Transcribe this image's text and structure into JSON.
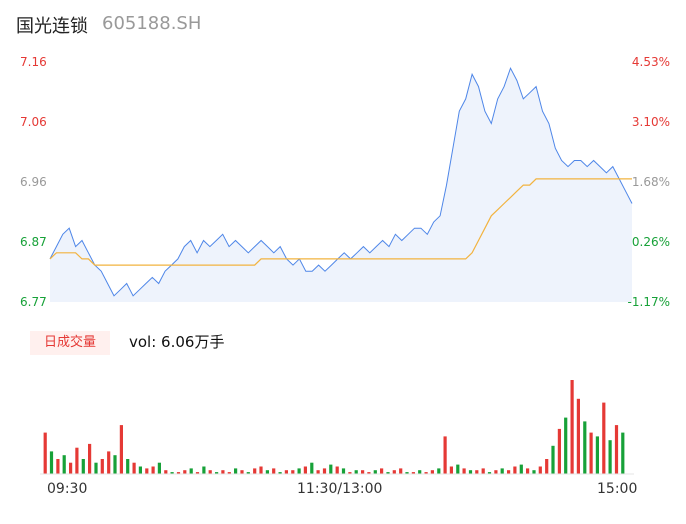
{
  "header": {
    "name": "国光连锁",
    "code": "605188.SH"
  },
  "colors": {
    "up": "#e53935",
    "down": "#17a138",
    "neutral": "#999999",
    "price": "#4e86e8",
    "avg": "#f2b33f"
  },
  "volume": {
    "tab_label": "日成交量",
    "vol_text": "vol: 6.06万手"
  },
  "chart_data": {
    "type": "line",
    "price_axis": {
      "ylim": [
        6.77,
        7.16
      ],
      "ticks": [
        "7.16",
        "7.06",
        "6.96",
        "6.87",
        "6.77"
      ]
    },
    "pct_axis": {
      "ticks": [
        "4.53%",
        "3.10%",
        "1.68%",
        "0.26%",
        "-1.17%"
      ]
    },
    "x_ticks": [
      "09:30",
      "11:30/13:00",
      "15:00"
    ],
    "series": [
      {
        "values": [
          6.84,
          6.86,
          6.88,
          6.89,
          6.86,
          6.87,
          6.85,
          6.83,
          6.82,
          6.8,
          6.78,
          6.79,
          6.8,
          6.78,
          6.79,
          6.8,
          6.81,
          6.8,
          6.82,
          6.83,
          6.84,
          6.86,
          6.87,
          6.85,
          6.87,
          6.86,
          6.87,
          6.88,
          6.86,
          6.87,
          6.86,
          6.85,
          6.86,
          6.87,
          6.86,
          6.85,
          6.86,
          6.84,
          6.83,
          6.84,
          6.82,
          6.82,
          6.83,
          6.82,
          6.83,
          6.84,
          6.85,
          6.84,
          6.85,
          6.86,
          6.85,
          6.86,
          6.87,
          6.86,
          6.88,
          6.87,
          6.88,
          6.89,
          6.89,
          6.88,
          6.9,
          6.91,
          6.96,
          7.02,
          7.08,
          7.1,
          7.14,
          7.12,
          7.08,
          7.06,
          7.1,
          7.12,
          7.15,
          7.13,
          7.1,
          7.11,
          7.12,
          7.08,
          7.06,
          7.02,
          7.0,
          6.99,
          7.0,
          7.0,
          6.99,
          7.0,
          6.99,
          6.98,
          6.99,
          6.97,
          6.95,
          6.93
        ]
      },
      {
        "values": [
          6.84,
          6.85,
          6.85,
          6.85,
          6.85,
          6.84,
          6.84,
          6.83,
          6.83,
          6.83,
          6.83,
          6.83,
          6.83,
          6.83,
          6.83,
          6.83,
          6.83,
          6.83,
          6.83,
          6.83,
          6.83,
          6.83,
          6.83,
          6.83,
          6.83,
          6.83,
          6.83,
          6.83,
          6.83,
          6.83,
          6.83,
          6.83,
          6.83,
          6.84,
          6.84,
          6.84,
          6.84,
          6.84,
          6.84,
          6.84,
          6.84,
          6.84,
          6.84,
          6.84,
          6.84,
          6.84,
          6.84,
          6.84,
          6.84,
          6.84,
          6.84,
          6.84,
          6.84,
          6.84,
          6.84,
          6.84,
          6.84,
          6.84,
          6.84,
          6.84,
          6.84,
          6.84,
          6.84,
          6.84,
          6.84,
          6.84,
          6.85,
          6.87,
          6.89,
          6.91,
          6.92,
          6.93,
          6.94,
          6.95,
          6.96,
          6.96,
          6.97,
          6.97,
          6.97,
          6.97,
          6.97,
          6.97,
          6.97,
          6.97,
          6.97,
          6.97,
          6.97,
          6.97,
          6.97,
          6.97,
          6.97,
          6.97
        ]
      }
    ],
    "volume_values": [
      22,
      12,
      8,
      10,
      6,
      14,
      8,
      16,
      6,
      8,
      12,
      10,
      26,
      8,
      6,
      4,
      3,
      4,
      6,
      2,
      1,
      1,
      2,
      3,
      1,
      4,
      2,
      1,
      2,
      1,
      3,
      2,
      1,
      3,
      4,
      2,
      3,
      1,
      2,
      2,
      3,
      4,
      6,
      2,
      3,
      5,
      4,
      3,
      1,
      2,
      2,
      1,
      2,
      3,
      1,
      2,
      3,
      1,
      1,
      2,
      1,
      2,
      3,
      20,
      4,
      5,
      3,
      2,
      2,
      3,
      1,
      2,
      3,
      2,
      4,
      5,
      3,
      2,
      4,
      8,
      15,
      24,
      30,
      50,
      40,
      28,
      22,
      20,
      38,
      18,
      26,
      22
    ],
    "volume_up": [
      true,
      false,
      true,
      false,
      true,
      true,
      false,
      true,
      false,
      true,
      true,
      false,
      true,
      false,
      true,
      false,
      true,
      true,
      false,
      true,
      false,
      true,
      true,
      false,
      true,
      false,
      true,
      false,
      true,
      true,
      false,
      true,
      false,
      true,
      true,
      false,
      true,
      false,
      true,
      true,
      false,
      true,
      false,
      true,
      true,
      false,
      true,
      false,
      true,
      false,
      true,
      true,
      false,
      true,
      false,
      true,
      true,
      false,
      true,
      false,
      true,
      true,
      false,
      true,
      true,
      false,
      true,
      false,
      true,
      true,
      false,
      true,
      false,
      true,
      true,
      false,
      true,
      false,
      true,
      true,
      false,
      true,
      false,
      true,
      true,
      false,
      true,
      false,
      true,
      false,
      true,
      false
    ]
  }
}
